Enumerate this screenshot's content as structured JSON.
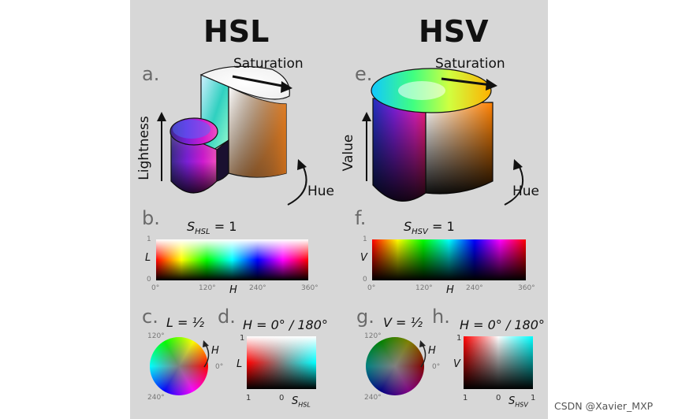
{
  "panel": {
    "background": "#d7d7d7"
  },
  "titles": {
    "hsl": "HSL",
    "hsv": "HSV"
  },
  "letters": {
    "a": "a.",
    "b": "b.",
    "c": "c.",
    "d": "d.",
    "e": "e.",
    "f": "f.",
    "g": "g.",
    "h": "h."
  },
  "hsl_3d": {
    "saturation": "Saturation",
    "lightness": "Lightness",
    "hue": "Hue"
  },
  "hsv_3d": {
    "saturation": "Saturation",
    "value": "Value",
    "hue": "Hue"
  },
  "hsl_strip": {
    "caption_var": "S",
    "caption_sub": "HSL",
    "caption_eq": " = 1",
    "y_label": "L",
    "y_max": "1",
    "y_min": "0",
    "x_label": "H",
    "x_ticks": [
      "0°",
      "120°",
      "240°",
      "360°"
    ]
  },
  "hsv_strip": {
    "caption_var": "S",
    "caption_sub": "HSV",
    "caption_eq": " = 1",
    "y_label": "V",
    "y_max": "1",
    "y_min": "0",
    "x_label": "H",
    "x_ticks": [
      "0°",
      "120°",
      "240°",
      "360°"
    ]
  },
  "hsl_wheel": {
    "caption": "L = ½",
    "hue_label": "H",
    "angles": [
      "120°",
      "0°",
      "240°"
    ]
  },
  "hsv_wheel": {
    "caption": "V = ½",
    "hue_label": "H",
    "angles": [
      "120°",
      "0°",
      "240°"
    ]
  },
  "hsl_square": {
    "caption": "H = 0° / 180°",
    "y_label": "L",
    "y_max": "1",
    "x_left": "1",
    "x_mid": "0",
    "x_var": "S",
    "x_sub": "HSL"
  },
  "hsv_square": {
    "caption": "H = 0° / 180°",
    "y_label": "V",
    "y_max": "1",
    "x_left": "1",
    "x_mid": "0",
    "x_right": "1",
    "x_var": "S",
    "x_sub": "HSV"
  },
  "watermark": "CSDN @Xavier_MXP"
}
